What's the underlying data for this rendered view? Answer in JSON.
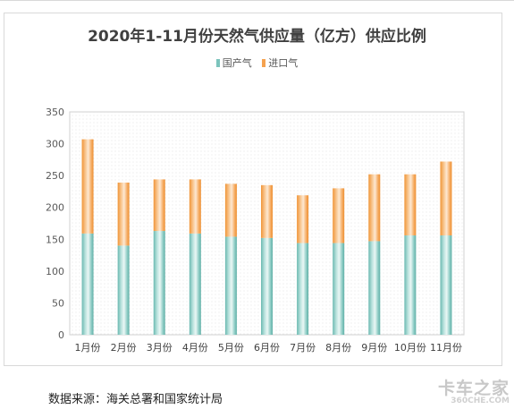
{
  "chart_data": {
    "type": "bar",
    "stacked": true,
    "title": "2020年1-11月份天然气供应量（亿方）供应比例",
    "categories": [
      "1月份",
      "2月份",
      "3月份",
      "4月份",
      "5月份",
      "6月份",
      "7月份",
      "8月份",
      "9月份",
      "10月份",
      "11月份"
    ],
    "series": [
      {
        "name": "国产气",
        "color": "#7cc4bd",
        "values": [
          159,
          140,
          163,
          159,
          154,
          152,
          144,
          144,
          147,
          156,
          156
        ]
      },
      {
        "name": "进口气",
        "color": "#f5a24f",
        "values": [
          148,
          99,
          81,
          85,
          83,
          83,
          75,
          86,
          105,
          96,
          116
        ]
      }
    ],
    "ylim": [
      0,
      350
    ],
    "yticks": [
      0,
      50,
      100,
      150,
      200,
      250,
      300,
      350
    ],
    "grid": false,
    "legend_position": "top-center"
  },
  "source_text": "数据来源：海关总署和国家统计局",
  "watermark": {
    "line1": "卡车之家",
    "line2": "360CHE.COM"
  }
}
